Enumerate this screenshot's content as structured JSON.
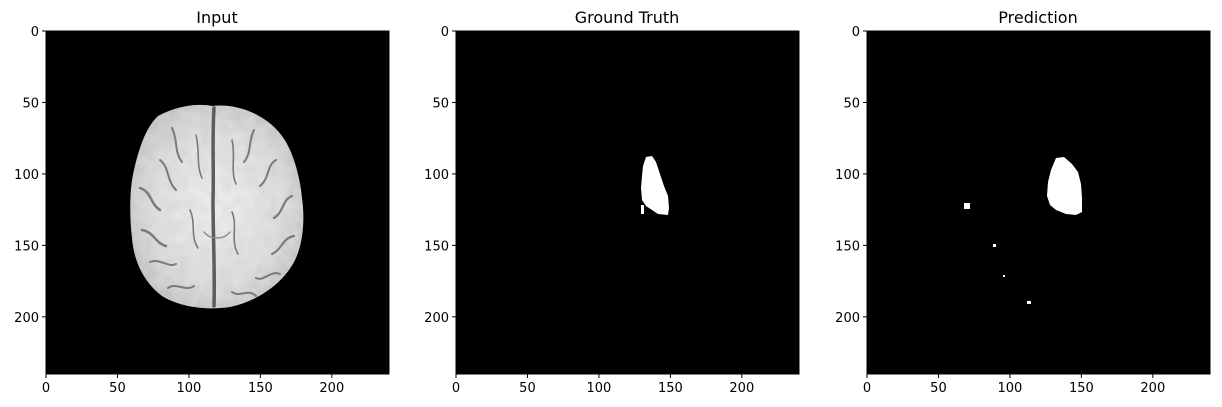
{
  "figure": {
    "panels": [
      {
        "id": "input",
        "title": "Input",
        "image": "brain-mri-axial-slice",
        "xticks": [
          0,
          50,
          100,
          150,
          200
        ],
        "yticks": [
          0,
          50,
          100,
          150,
          200
        ],
        "xlim": [
          0,
          240
        ],
        "ylim": [
          240,
          0
        ]
      },
      {
        "id": "ground-truth",
        "title": "Ground Truth",
        "image": "binary-segmentation-mask",
        "xticks": [
          0,
          50,
          100,
          150,
          200
        ],
        "yticks": [
          0,
          50,
          100,
          150,
          200
        ],
        "xlim": [
          0,
          240
        ],
        "ylim": [
          240,
          0
        ]
      },
      {
        "id": "prediction",
        "title": "Prediction",
        "image": "binary-segmentation-mask",
        "xticks": [
          0,
          50,
          100,
          150,
          200
        ],
        "yticks": [
          0,
          50,
          100,
          150,
          200
        ],
        "xlim": [
          0,
          240
        ],
        "ylim": [
          240,
          0
        ]
      }
    ],
    "colors": {
      "background": "#000000",
      "mask": "#ffffff",
      "brain_light": "#e4e4e4",
      "brain_dark": "#6a6a6a"
    }
  }
}
